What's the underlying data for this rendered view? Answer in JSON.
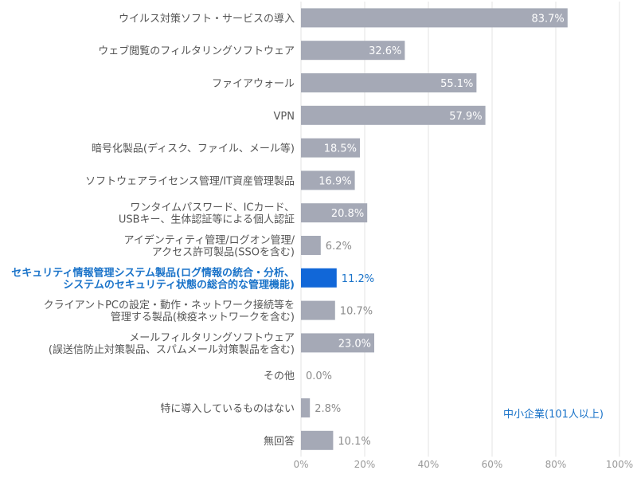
{
  "chart_data": {
    "type": "bar",
    "orientation": "horizontal",
    "xlim": [
      0,
      100
    ],
    "x_ticks": [
      "0%",
      "20%",
      "40%",
      "60%",
      "80%",
      "100%"
    ],
    "grid": true,
    "annotation": "中小企業(101人以上)",
    "colors": {
      "bar": "#a5a9b6",
      "highlight": "#1167d8",
      "highlight_text": "#1a73c9",
      "label": "#555555",
      "value_outside": "#8c8c8c",
      "value_inside": "#ffffff",
      "grid": "#e3e3e3"
    },
    "categories": [
      {
        "lines": [
          "ウイルス対策ソフト・サービスの導入"
        ],
        "value": 83.7,
        "label": "83.7%",
        "highlight": false
      },
      {
        "lines": [
          "ウェブ閲覧のフィルタリングソフトウェア"
        ],
        "value": 32.6,
        "label": "32.6%",
        "highlight": false
      },
      {
        "lines": [
          "ファイアウォール"
        ],
        "value": 55.1,
        "label": "55.1%",
        "highlight": false
      },
      {
        "lines": [
          "VPN"
        ],
        "value": 57.9,
        "label": "57.9%",
        "highlight": false
      },
      {
        "lines": [
          "暗号化製品(ディスク、ファイル、メール等)"
        ],
        "value": 18.5,
        "label": "18.5%",
        "highlight": false
      },
      {
        "lines": [
          "ソフトウェアライセンス管理/IT資産管理製品"
        ],
        "value": 16.9,
        "label": "16.9%",
        "highlight": false
      },
      {
        "lines": [
          "ワンタイムパスワード、ICカード、",
          "USBキー、生体認証等による個人認証"
        ],
        "value": 20.8,
        "label": "20.8%",
        "highlight": false
      },
      {
        "lines": [
          "アイデンティティ管理/ログオン管理/",
          "アクセス許可製品(SSOを含む)"
        ],
        "value": 6.2,
        "label": "6.2%",
        "highlight": false
      },
      {
        "lines": [
          "セキュリティ情報管理システム製品(ログ情報の統合・分析、",
          "システムのセキュリティ状態の総合的な管理機能)"
        ],
        "value": 11.2,
        "label": "11.2%",
        "highlight": true
      },
      {
        "lines": [
          "クライアントPCの設定・動作・ネットワーク接続等を",
          "管理する製品(検疫ネットワークを含む)"
        ],
        "value": 10.7,
        "label": "10.7%",
        "highlight": false
      },
      {
        "lines": [
          "メールフィルタリングソフトウェア",
          "(誤送信防止対策製品、スパムメール対策製品を含む)"
        ],
        "value": 23.0,
        "label": "23.0%",
        "highlight": false
      },
      {
        "lines": [
          "その他"
        ],
        "value": 0.0,
        "label": "0.0%",
        "highlight": false
      },
      {
        "lines": [
          "特に導入しているものはない"
        ],
        "value": 2.8,
        "label": "2.8%",
        "highlight": false
      },
      {
        "lines": [
          "無回答"
        ],
        "value": 10.1,
        "label": "10.1%",
        "highlight": false
      }
    ]
  }
}
